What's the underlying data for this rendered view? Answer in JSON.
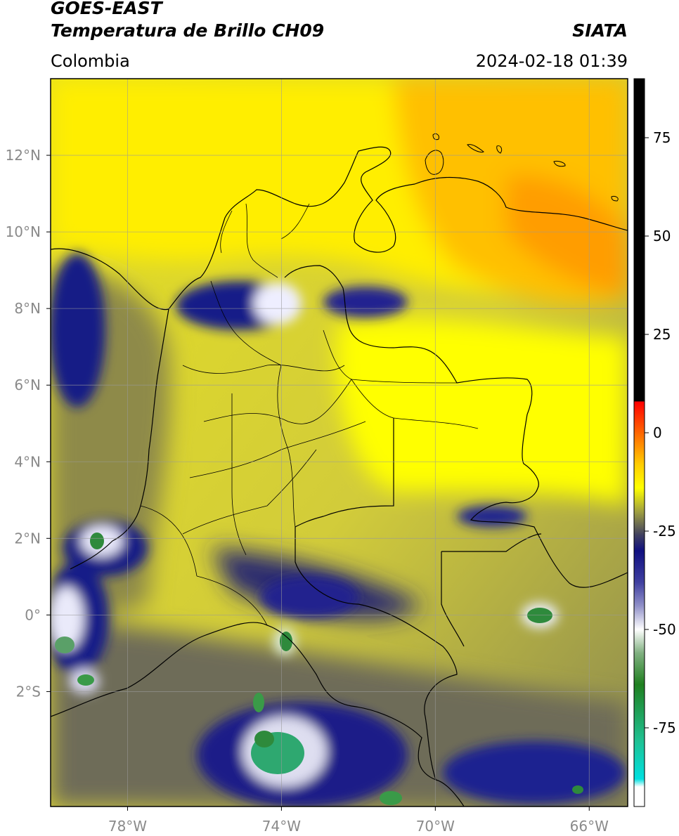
{
  "header": {
    "satellite": "GOES-EAST",
    "product": "Temperatura de Brillo CH09",
    "brand": "SIATA",
    "region": "Colombia",
    "datetime": "2024-02-18 01:39"
  },
  "map": {
    "lon_range": [
      -80,
      -65
    ],
    "lat_range": [
      -5,
      14
    ],
    "lon_ticks": [
      {
        "value": -78,
        "label": "78°W"
      },
      {
        "value": -74,
        "label": "74°W"
      },
      {
        "value": -70,
        "label": "70°W"
      },
      {
        "value": -66,
        "label": "66°W"
      }
    ],
    "lat_ticks": [
      {
        "value": 12,
        "label": "12°N"
      },
      {
        "value": 10,
        "label": "10°N"
      },
      {
        "value": 8,
        "label": "8°N"
      },
      {
        "value": 6,
        "label": "6°N"
      },
      {
        "value": 4,
        "label": "4°N"
      },
      {
        "value": 2,
        "label": "2°N"
      },
      {
        "value": 0,
        "label": "0°"
      },
      {
        "value": -2,
        "label": "2°S"
      }
    ],
    "grid": true
  },
  "colorbar": {
    "range": [
      -95,
      90
    ],
    "ticks": [
      {
        "value": 75,
        "label": "75"
      },
      {
        "value": 50,
        "label": "50"
      },
      {
        "value": 25,
        "label": "25"
      },
      {
        "value": 0,
        "label": "0"
      },
      {
        "value": -25,
        "label": "-25"
      },
      {
        "value": -50,
        "label": "-50"
      },
      {
        "value": -75,
        "label": "-75"
      }
    ],
    "stops": [
      {
        "value": 90,
        "color": "#000000"
      },
      {
        "value": 8,
        "color": "#000000"
      },
      {
        "value": 7.9,
        "color": "#ff0000"
      },
      {
        "value": 0,
        "color": "#ff6600"
      },
      {
        "value": -8,
        "color": "#ffcc00"
      },
      {
        "value": -14,
        "color": "#ffff00"
      },
      {
        "value": -20,
        "color": "#a0a040"
      },
      {
        "value": -26,
        "color": "#404060"
      },
      {
        "value": -30,
        "color": "#101080"
      },
      {
        "value": -38,
        "color": "#4040a0"
      },
      {
        "value": -44,
        "color": "#9090c8"
      },
      {
        "value": -50,
        "color": "#ffffff"
      },
      {
        "value": -56,
        "color": "#80b080"
      },
      {
        "value": -64,
        "color": "#208020"
      },
      {
        "value": -78,
        "color": "#20c090"
      },
      {
        "value": -88,
        "color": "#00e0e0"
      },
      {
        "value": -90,
        "color": "#ffffff"
      },
      {
        "value": -95,
        "color": "#ffffff"
      }
    ]
  },
  "colors": {
    "frame": "#000000",
    "gridline": "#9a9a9a"
  }
}
